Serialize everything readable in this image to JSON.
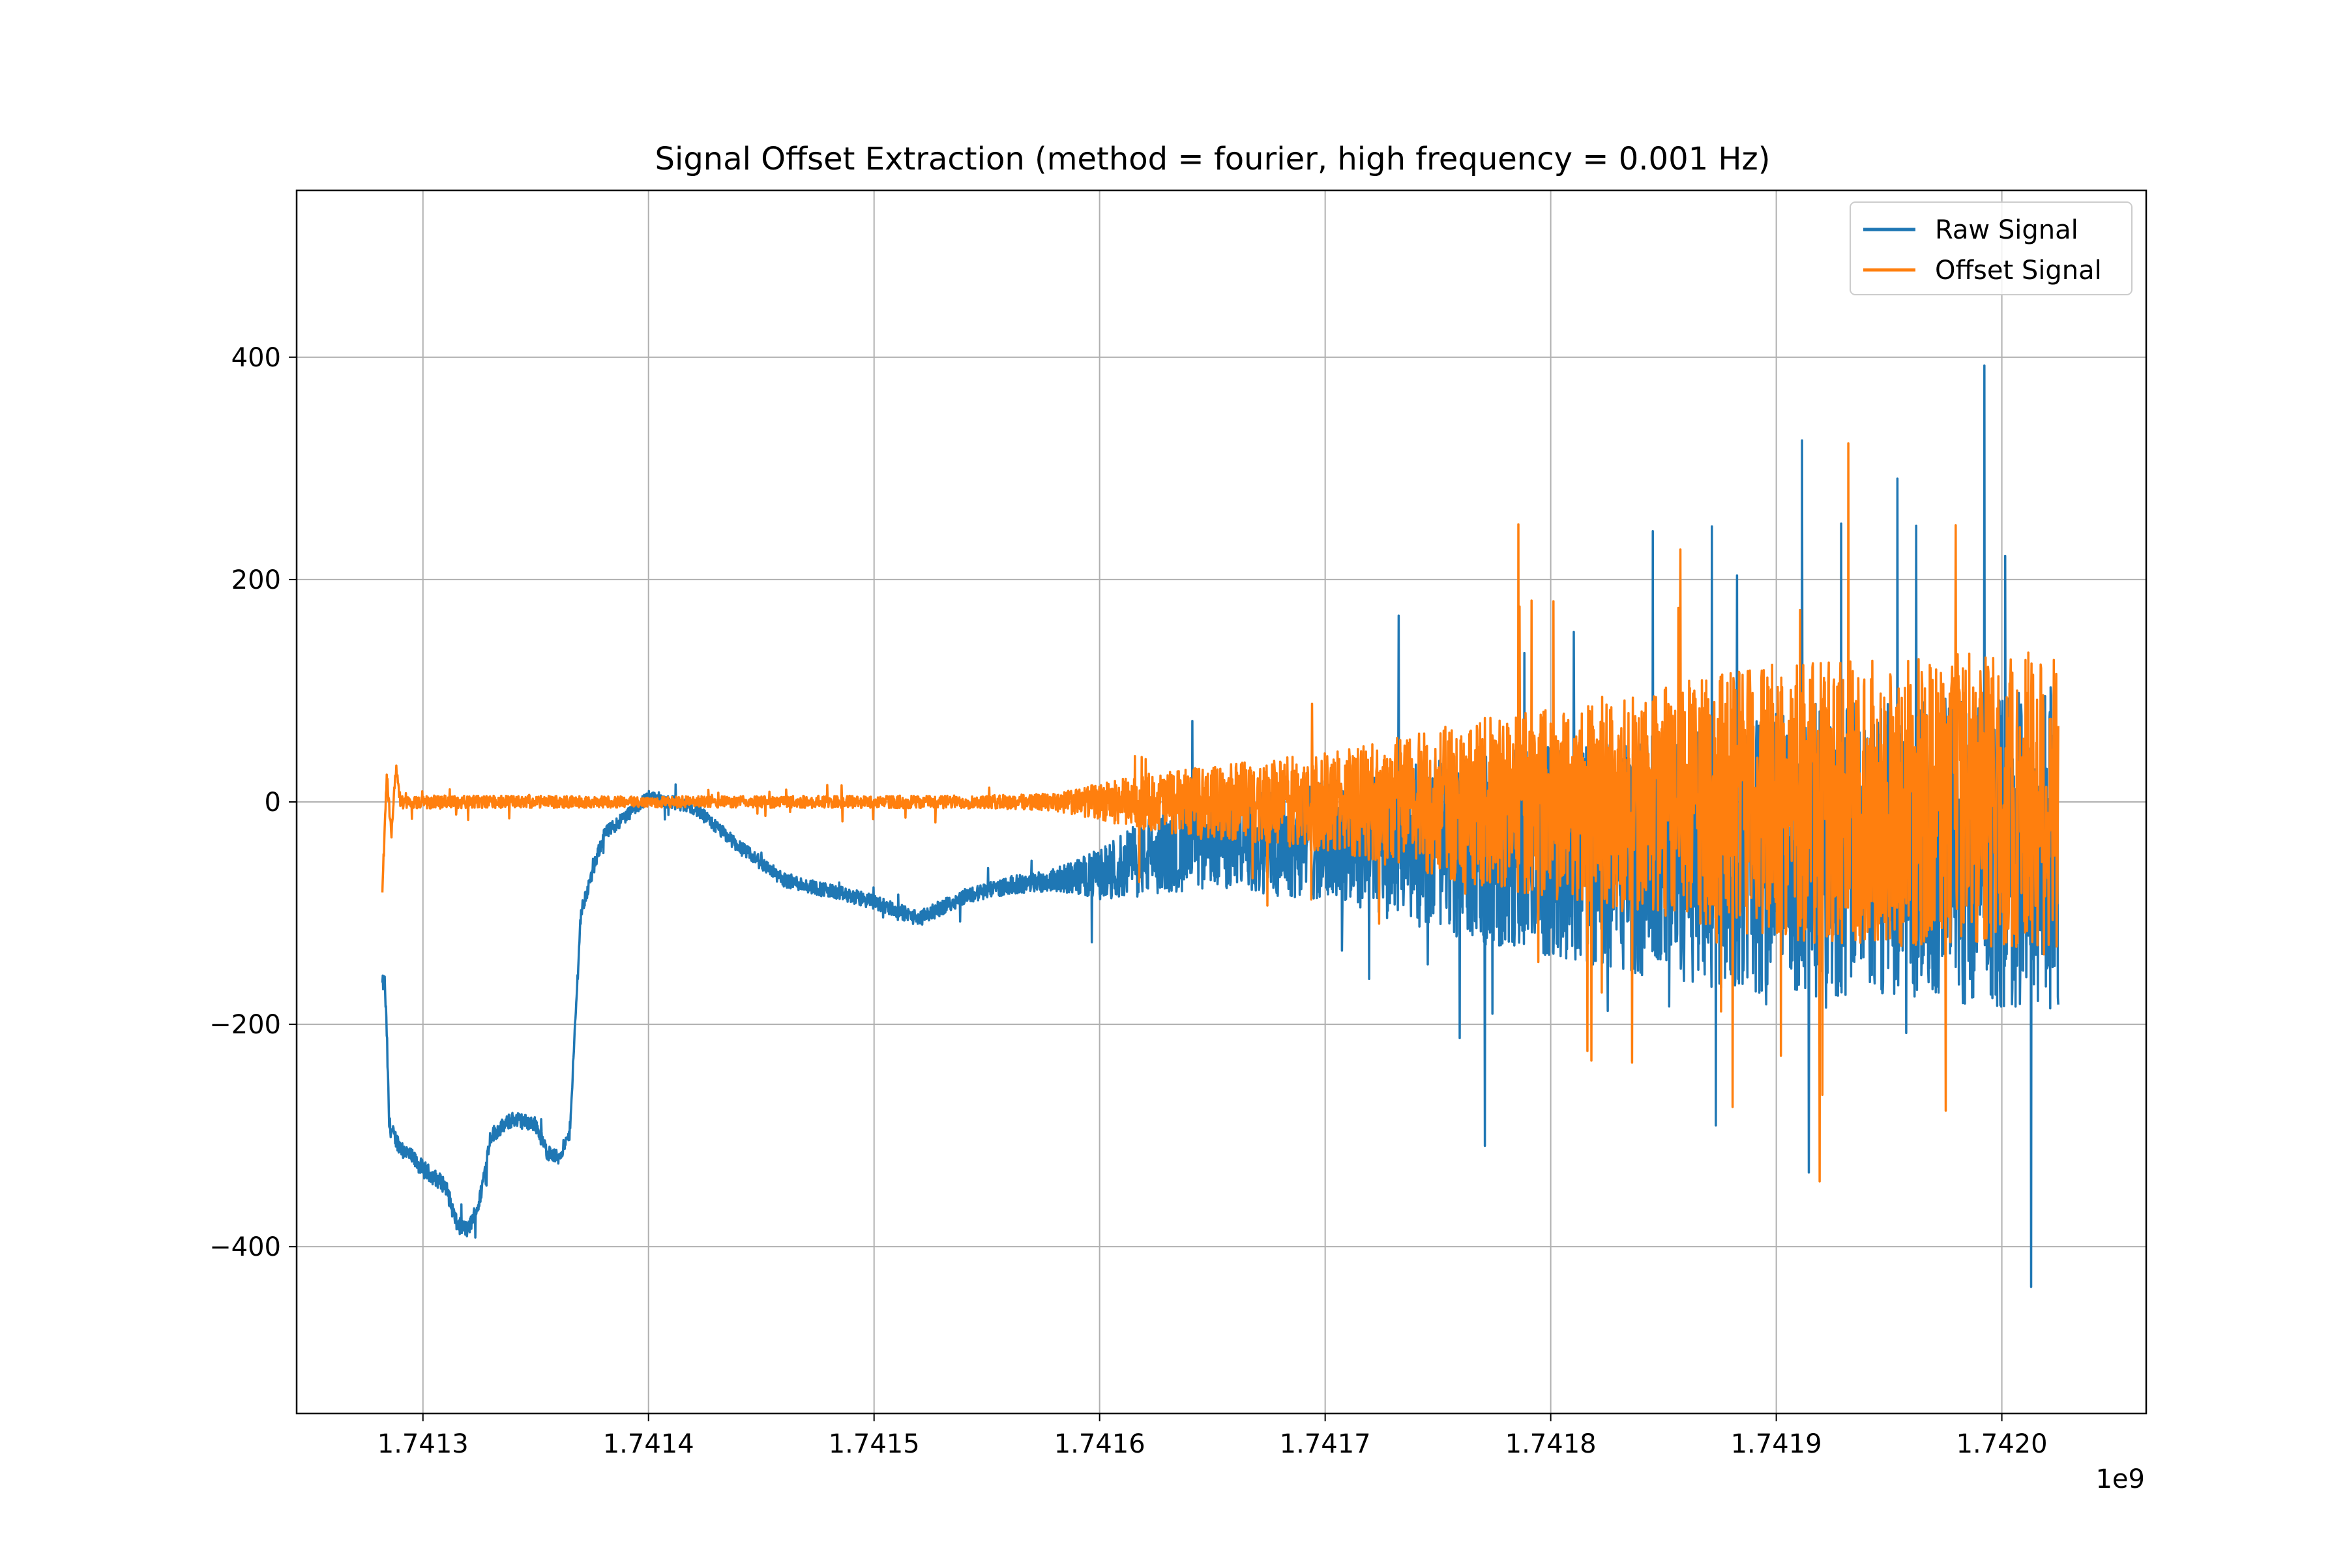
{
  "chart_data": {
    "type": "line",
    "title": "Signal Offset Extraction (method = fourier, high frequency = 0.001 Hz)",
    "xlabel": "",
    "ylabel": "",
    "x_offset_label": "1e9",
    "xlim": [
      1.741244,
      1.742064
    ],
    "ylim": [
      -550,
      550
    ],
    "x_ticks": [
      1.7413,
      1.7414,
      1.7415,
      1.7416,
      1.7417,
      1.7418,
      1.7419,
      1.742
    ],
    "x_tick_labels": [
      "1.7413",
      "1.7414",
      "1.7415",
      "1.7416",
      "1.7417",
      "1.7418",
      "1.7419",
      "1.7420"
    ],
    "y_ticks": [
      -400,
      -200,
      0,
      200,
      400
    ],
    "y_tick_labels": [
      "−400",
      "−200",
      "0",
      "200",
      "400"
    ],
    "grid": true,
    "legend_position": "top-right",
    "series": [
      {
        "name": "Raw Signal",
        "color": "#1f77b4",
        "noise_profile": [
          [
            1.741282,
            8
          ],
          [
            1.7414,
            6
          ],
          [
            1.74155,
            7
          ],
          [
            1.74158,
            10
          ],
          [
            1.74162,
            35
          ],
          [
            1.7417,
            55
          ],
          [
            1.74178,
            90
          ],
          [
            1.74185,
            110
          ],
          [
            1.7419,
            130
          ],
          [
            1.742,
            140
          ],
          [
            1.742025,
            150
          ]
        ],
        "x": [
          1.741282,
          1.741283,
          1.741284,
          1.741285,
          1.741287,
          1.74129,
          1.7413,
          1.74131,
          1.741315,
          1.74132,
          1.741325,
          1.74133,
          1.74134,
          1.74135,
          1.741355,
          1.74136,
          1.741365,
          1.74137,
          1.74138,
          1.7414,
          1.74142,
          1.74144,
          1.74146,
          1.74148,
          1.7415,
          1.74152,
          1.74154,
          1.74156,
          1.74158,
          1.7416,
          1.74162,
          1.74164,
          1.74166,
          1.7417,
          1.74175,
          1.7418,
          1.74185,
          1.7419,
          1.74195,
          1.742,
          1.742025
        ],
        "y": [
          -165,
          -160,
          -210,
          -290,
          -300,
          -310,
          -330,
          -345,
          -380,
          -385,
          -360,
          -300,
          -285,
          -290,
          -315,
          -320,
          -300,
          -100,
          -30,
          5,
          -5,
          -40,
          -70,
          -80,
          -90,
          -105,
          -85,
          -75,
          -70,
          -65,
          -50,
          -40,
          -35,
          -35,
          -40,
          -45,
          -50,
          -45,
          -40,
          -45,
          -40
        ]
      },
      {
        "name": "Offset Signal",
        "color": "#ff7f0e",
        "noise_profile": [
          [
            1.741282,
            6
          ],
          [
            1.7414,
            5
          ],
          [
            1.74155,
            6
          ],
          [
            1.74158,
            8
          ],
          [
            1.74162,
            25
          ],
          [
            1.7417,
            45
          ],
          [
            1.74178,
            80
          ],
          [
            1.74185,
            105
          ],
          [
            1.7419,
            125
          ],
          [
            1.742,
            135
          ],
          [
            1.742025,
            145
          ]
        ],
        "x": [
          1.741282,
          1.741284,
          1.741286,
          1.741288,
          1.74129,
          1.7413,
          1.7414,
          1.7415,
          1.7416,
          1.7417,
          1.7418,
          1.7419,
          1.742,
          1.742025
        ],
        "y": [
          -80,
          25,
          -30,
          30,
          0,
          0,
          0,
          0,
          0,
          0,
          0,
          0,
          0,
          0
        ]
      }
    ]
  }
}
